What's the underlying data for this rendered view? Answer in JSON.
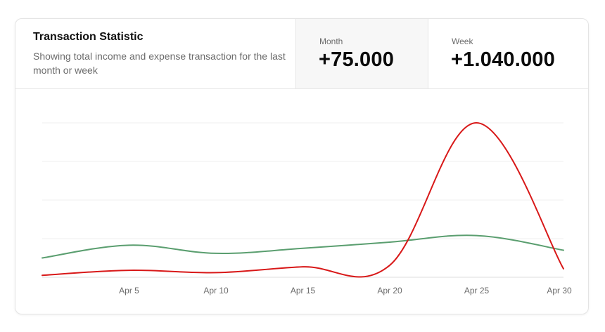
{
  "header": {
    "title": "Transaction Statistic",
    "subtitle": "Showing total income and expense transaction for the last month or week"
  },
  "stats": [
    {
      "label": "Month",
      "value": "+75.000"
    },
    {
      "label": "Week",
      "value": "+1.040.000"
    }
  ],
  "colors": {
    "income": "#5a9e6f",
    "expense": "#d81818",
    "grid": "#efefef",
    "baseline": "#dcdcdc"
  },
  "chart_data": {
    "type": "line",
    "title": "",
    "xlabel": "",
    "ylabel": "",
    "x_ticks": [
      "Apr 5",
      "Apr 10",
      "Apr 15",
      "Apr 20",
      "Apr 25",
      "Apr 30"
    ],
    "x_tick_days": [
      5,
      10,
      15,
      20,
      25,
      30
    ],
    "xlim": [
      0,
      30
    ],
    "ylim": [
      0,
      4
    ],
    "grid": true,
    "series": [
      {
        "color": "#5a9e6f",
        "x": [
          0,
          5,
          10,
          15,
          20,
          25,
          30
        ],
        "y": [
          0.5,
          0.83,
          0.62,
          0.75,
          0.91,
          1.08,
          0.7
        ]
      },
      {
        "color": "#d81818",
        "x": [
          0,
          5,
          10,
          15,
          20,
          25,
          30
        ],
        "y": [
          0.05,
          0.18,
          0.12,
          0.27,
          0.31,
          4.0,
          0.22
        ]
      }
    ]
  }
}
